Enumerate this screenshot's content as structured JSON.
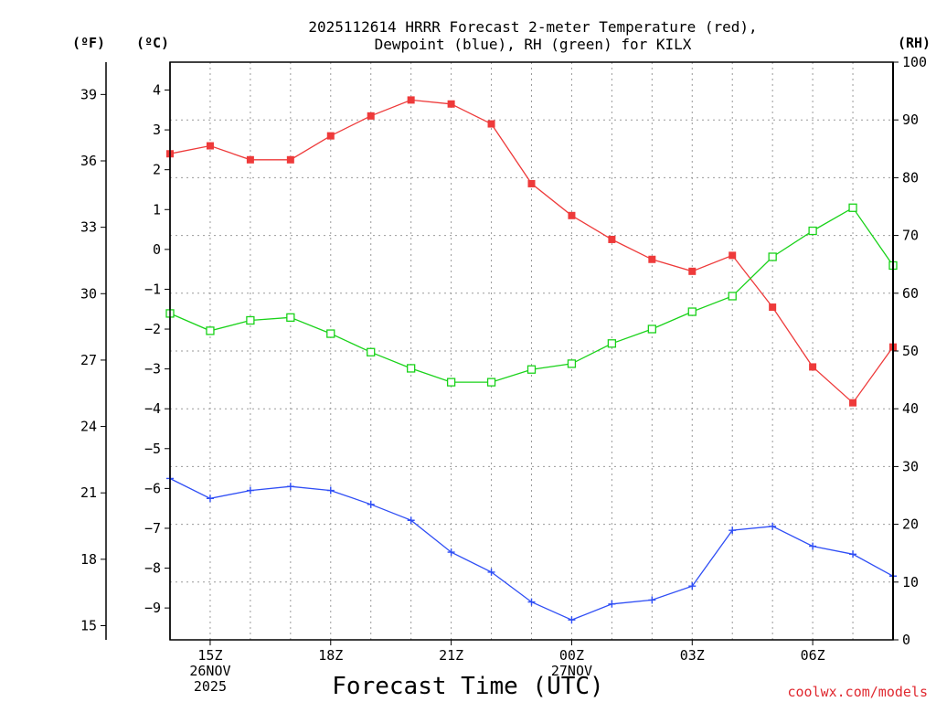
{
  "chart_data": {
    "type": "line",
    "title_line1": "2025112614 HRRR Forecast 2-meter Temperature (red),",
    "title_line2": "Dewpoint (blue), RH (green) for KILX",
    "xlabel": "Forecast Time (UTC)",
    "credit": "coolwx.com/models",
    "units": {
      "fahrenheit": "(ºF)",
      "celsius": "(ºC)",
      "rh": "(RH)"
    },
    "x_hours": [
      14,
      15,
      16,
      17,
      18,
      19,
      20,
      21,
      22,
      23,
      24,
      25,
      26,
      27,
      28,
      29,
      30,
      31,
      32
    ],
    "x_range": [
      14,
      32
    ],
    "x_ticks": [
      {
        "hour": 15,
        "lines": [
          "15Z",
          "26NOV",
          "2025"
        ]
      },
      {
        "hour": 18,
        "lines": [
          "18Z"
        ]
      },
      {
        "hour": 21,
        "lines": [
          "21Z"
        ]
      },
      {
        "hour": 24,
        "lines": [
          "00Z",
          "27NOV"
        ]
      },
      {
        "hour": 27,
        "lines": [
          "03Z"
        ]
      },
      {
        "hour": 30,
        "lines": [
          "06Z"
        ]
      }
    ],
    "celsius_range": [
      -9.8,
      4.7
    ],
    "celsius_ticks": [
      "4",
      "3",
      "2",
      "1",
      "0",
      "-1",
      "-2",
      "-3",
      "-4",
      "-5",
      "-6",
      "-7",
      "-8",
      "-9"
    ],
    "fahrenheit_ticks": [
      "39",
      "36",
      "33",
      "30",
      "27",
      "24",
      "21",
      "18",
      "15"
    ],
    "rh_range": [
      0,
      100
    ],
    "rh_ticks": [
      "100",
      "90",
      "80",
      "70",
      "60",
      "50",
      "40",
      "30",
      "20",
      "10",
      "0"
    ],
    "series": [
      {
        "name": "2-meter Temperature",
        "color": "#ee3a3a",
        "marker": "filled-square",
        "values": [
          2.4,
          2.6,
          2.25,
          2.25,
          2.85,
          3.35,
          3.75,
          3.65,
          3.15,
          1.65,
          0.85,
          0.25,
          -0.25,
          -0.55,
          -0.15,
          -1.45,
          -2.95,
          -3.85,
          -2.45
        ]
      },
      {
        "name": "Dewpoint",
        "color": "#2f4ef5",
        "marker": "plus",
        "values": [
          -5.75,
          -6.25,
          -6.05,
          -5.95,
          -6.05,
          -6.4,
          -6.8,
          -7.6,
          -8.1,
          -8.85,
          -9.3,
          -8.9,
          -8.8,
          -8.45,
          -7.05,
          -6.95,
          -7.45,
          -7.65,
          -8.2
        ]
      },
      {
        "name": "RH",
        "color": "#19d219",
        "marker": "open-square",
        "values": [
          56.5,
          53.5,
          55.3,
          55.8,
          53.0,
          49.8,
          47.0,
          44.6,
          44.6,
          46.8,
          47.8,
          51.3,
          53.8,
          56.8,
          59.5,
          66.3,
          70.8,
          74.8,
          64.8
        ]
      }
    ]
  }
}
